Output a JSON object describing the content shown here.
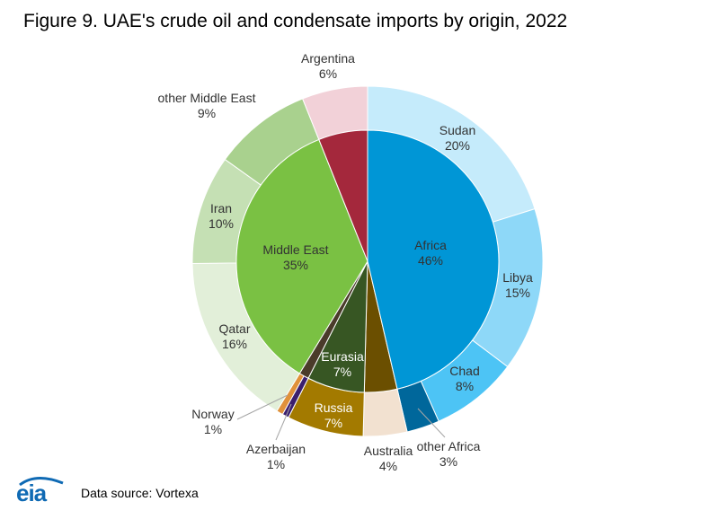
{
  "title": "Figure 9. UAE's crude oil and condensate imports by origin, 2022",
  "source": "Data source: Vortexa",
  "logo": {
    "text": "eia",
    "color": "#0f6ab4"
  },
  "chart_data": {
    "type": "pie",
    "subtype": "nested-donut",
    "inner": [
      {
        "name": "Africa",
        "value_label": "46%",
        "value": 46,
        "color": "#0096d6",
        "label_color": "#333333"
      },
      {
        "name": "Eurasia",
        "value_label": "7%",
        "value": 7,
        "color": "#375623",
        "label_color": "#ffffff"
      },
      {
        "name": "",
        "value_label": "",
        "value": 0.6,
        "color": "#4a3b2a",
        "label_color": "#333333"
      },
      {
        "name": "Middle East",
        "value_label": "35%",
        "value": 35,
        "color": "#7ac143",
        "label_color": "#333333"
      },
      {
        "name": "",
        "value_label": "",
        "value": 6,
        "color": "#a4283c",
        "label_color": "#333333"
      }
    ],
    "outer": [
      {
        "name": "Sudan",
        "value_label": "20%",
        "value": 20,
        "color": "#c5ebfb",
        "label_color": "#333333"
      },
      {
        "name": "Libya",
        "value_label": "15%",
        "value": 15,
        "color": "#8ed8f8",
        "label_color": "#333333"
      },
      {
        "name": "Chad",
        "value_label": "8%",
        "value": 8,
        "color": "#4dc4f5",
        "label_color": "#333333"
      },
      {
        "name": "other Africa",
        "value_label": "3%",
        "value": 3,
        "color": "#00679b",
        "label_color": "#333333"
      },
      {
        "name": "Australia",
        "value_label": "4%",
        "value": 4,
        "color": "#f2e1d0",
        "label_color": "#333333"
      },
      {
        "name": "Russia",
        "value_label": "7%",
        "value": 7,
        "color": "#a37a00",
        "label_color": "#ffffff"
      },
      {
        "name": "Azerbaijan",
        "value_label": "1%",
        "value": 0.6,
        "color": "#3b1f6e",
        "label_color": "#333333"
      },
      {
        "name": "Norway",
        "value_label": "1%",
        "value": 0.6,
        "color": "#e0913a",
        "label_color": "#333333"
      },
      {
        "name": "Qatar",
        "value_label": "16%",
        "value": 16,
        "color": "#e2efd9",
        "label_color": "#333333"
      },
      {
        "name": "Iran",
        "value_label": "10%",
        "value": 10,
        "color": "#c5e0b4",
        "label_color": "#333333"
      },
      {
        "name": "other Middle East",
        "value_label": "9%",
        "value": 9,
        "color": "#a9d18e",
        "label_color": "#333333"
      },
      {
        "name": "Argentina",
        "value_label": "6%",
        "value": 6,
        "color": "#f2d1d8",
        "label_color": "#333333"
      }
    ],
    "extra_inner": [
      {
        "name": "",
        "value": 4,
        "color": "#6b4f00",
        "start_after_outer": "other Africa"
      }
    ]
  }
}
